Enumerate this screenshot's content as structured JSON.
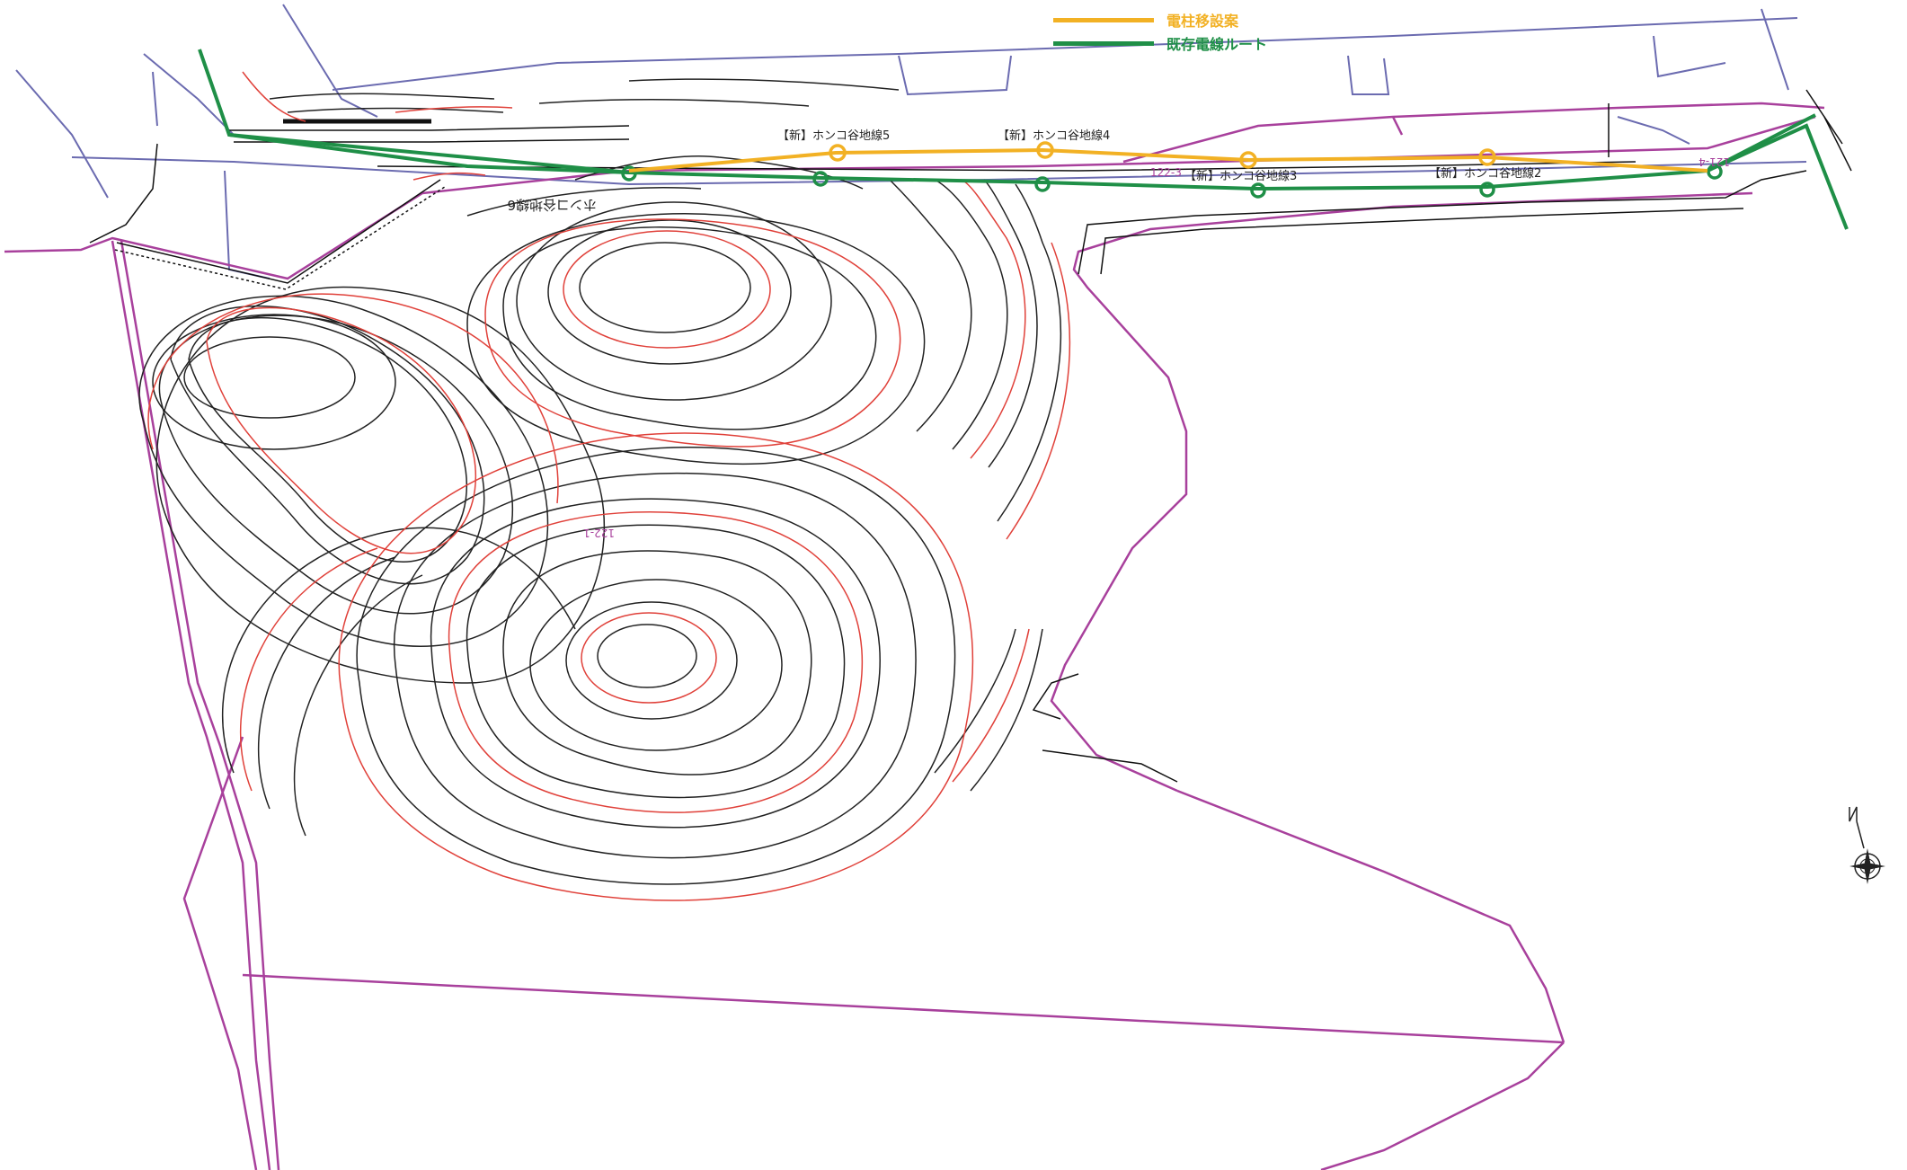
{
  "legend": {
    "proposal": {
      "label": "電柱移設案",
      "color": "#f2b124"
    },
    "existing": {
      "label": "既存電線ルート",
      "color": "#1f8f47"
    }
  },
  "colors": {
    "boundary": "#a8409c",
    "road": "#6b6bb0",
    "contour_index": "#e0413a",
    "contour": "#222222"
  },
  "poles": {
    "new5": "【新】ホンコ谷地線5",
    "new4": "【新】ホンコ谷地線4",
    "new3": "【新】ホンコ谷地線3",
    "new2": "【新】ホンコ谷地線2",
    "old6": "ホンコ谷地線6"
  },
  "parcels": {
    "p1223": "122-3",
    "p1221": "122-1",
    "p1214": "121-4"
  },
  "icons": {
    "compass": "north-arrow-compass-rose"
  }
}
